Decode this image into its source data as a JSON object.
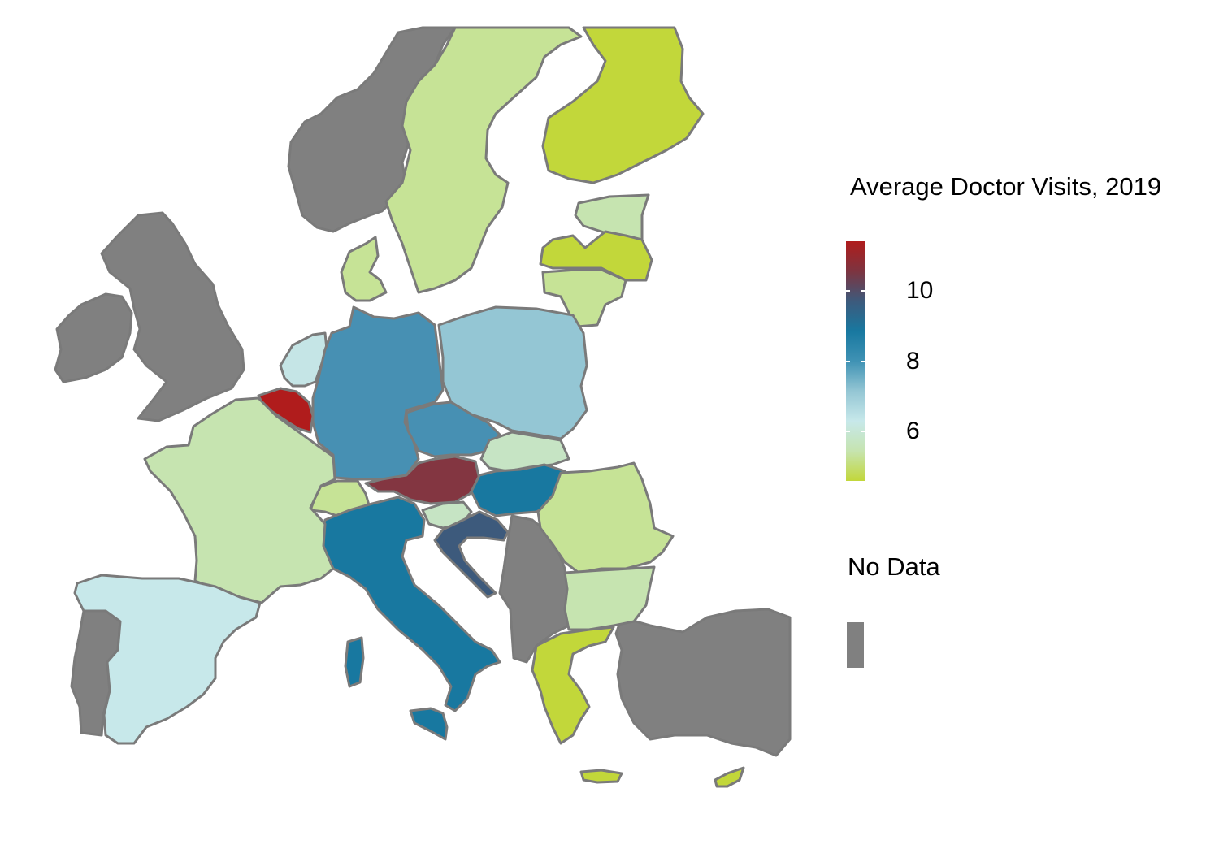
{
  "legend": {
    "title": "Average Doctor Visits, 2019",
    "ticks": [
      {
        "label": "10",
        "value": 10
      },
      {
        "label": "8",
        "value": 8
      },
      {
        "label": "6",
        "value": 6
      }
    ],
    "scale_min": 4.6,
    "scale_max": 11.4,
    "gradient_colors": [
      "#c2d73a",
      "#c6e4b0",
      "#c7e8ea",
      "#94c6d4",
      "#3f92b4",
      "#1878a0",
      "#3d5a7c",
      "#7d3440",
      "#b01c1c"
    ],
    "no_data_label": "No Data",
    "no_data_color": "#808080"
  },
  "map_colors": {
    "no_data": "#808080",
    "finland": "#c2d73a",
    "sweden": "#c6e396",
    "estonia": "#c6e4b0",
    "latvia": "#c2d73a",
    "lithuania": "#c6e396",
    "denmark": "#c6e396",
    "netherlands": "#c5e5e6",
    "belgium": "#b01c1c",
    "germany": "#4790b3",
    "poland": "#94c6d4",
    "czechia": "#4790b3",
    "slovakia": "#c6e4c4",
    "austria": "#833641",
    "hungary": "#1878a0",
    "slovenia": "#c6e4c4",
    "croatia": "#3d5a7c",
    "switzerland": "#c6e396",
    "italy": "#1878a0",
    "france": "#c6e4b0",
    "spain": "#c7e8ea",
    "romania": "#c6e396",
    "bulgaria": "#c6e4b0",
    "greece": "#c2d73a",
    "cyprus": "#c2d73a"
  }
}
